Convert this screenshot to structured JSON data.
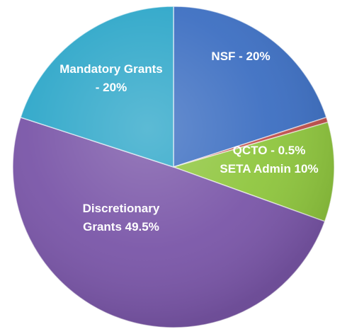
{
  "chart_data": {
    "type": "pie",
    "title": "",
    "slices": [
      {
        "label_lines": [
          "NSF - 20%"
        ],
        "value": 20,
        "color": "#3d6fc2"
      },
      {
        "label_lines": [
          ""
        ],
        "value": 0.5,
        "color": "#c0504d"
      },
      {
        "label_lines": [
          "QCTO  - 0.5%",
          "SETA Admin 10%"
        ],
        "value": 10,
        "color": "#8fc63e"
      },
      {
        "label_lines": [
          "Discretionary",
          "Grants 49.5%"
        ],
        "value": 49.5,
        "color": "#7a56a8"
      },
      {
        "label_lines": [
          "Mandatory  Grants",
          "- 20%"
        ],
        "value": 20,
        "color": "#2ea7c9"
      }
    ],
    "legend": "none"
  }
}
